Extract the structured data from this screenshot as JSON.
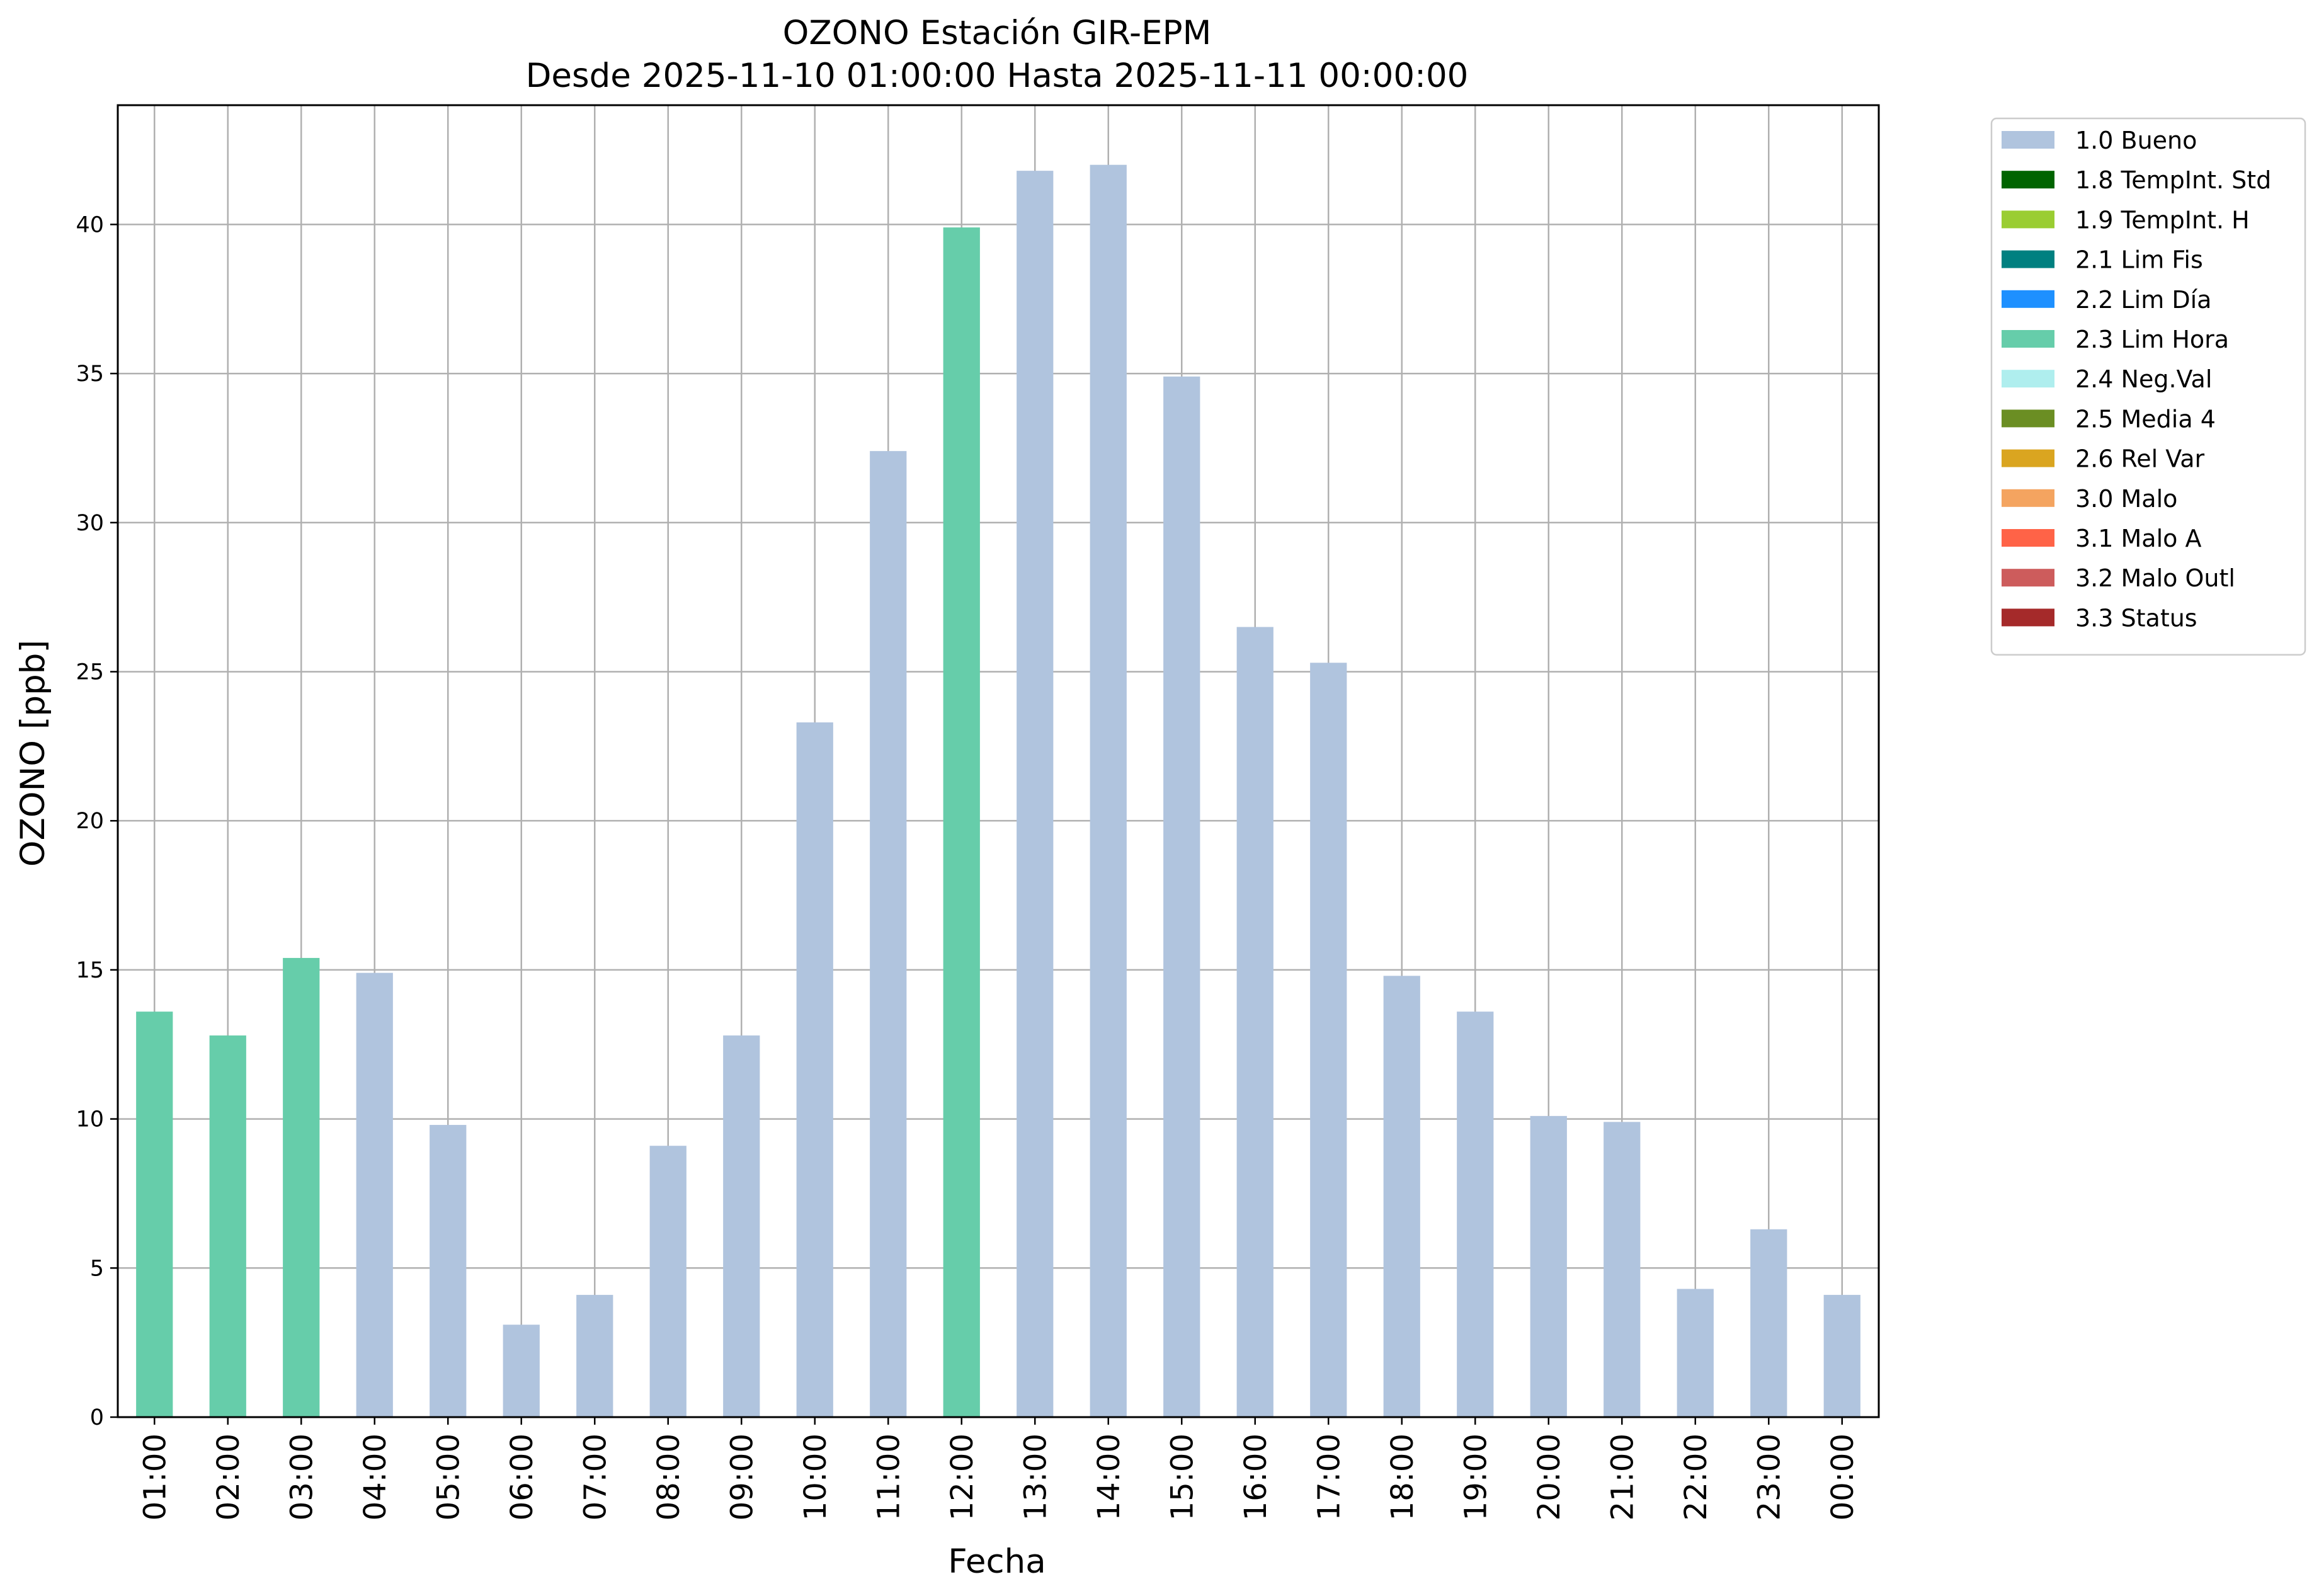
{
  "chart_data": {
    "type": "bar",
    "title": "OZONO Estación GIR-EPM",
    "subtitle": "Desde 2025-11-10 01:00:00 Hasta 2025-11-11 00:00:00",
    "xlabel": "Fecha",
    "ylabel": "OZONO [ppb]",
    "ylim": [
      0,
      44
    ],
    "yticks": [
      0,
      5,
      10,
      15,
      20,
      25,
      30,
      35,
      40
    ],
    "grid": true,
    "legend_position": "outside-top-right",
    "categories": [
      "01:00",
      "02:00",
      "03:00",
      "04:00",
      "05:00",
      "06:00",
      "07:00",
      "08:00",
      "09:00",
      "10:00",
      "11:00",
      "12:00",
      "13:00",
      "14:00",
      "15:00",
      "16:00",
      "17:00",
      "18:00",
      "19:00",
      "20:00",
      "21:00",
      "22:00",
      "23:00",
      "00:00"
    ],
    "values": [
      13.6,
      12.8,
      15.4,
      14.9,
      9.8,
      3.1,
      4.1,
      9.1,
      12.8,
      23.3,
      32.4,
      39.9,
      41.8,
      42.0,
      34.9,
      26.5,
      25.3,
      14.8,
      13.6,
      10.1,
      9.9,
      4.3,
      6.3,
      4.1
    ],
    "flags": [
      "2.3 Lim Hora",
      "2.3 Lim Hora",
      "2.3 Lim Hora",
      "1.0 Bueno",
      "1.0 Bueno",
      "1.0 Bueno",
      "1.0 Bueno",
      "1.0 Bueno",
      "1.0 Bueno",
      "1.0 Bueno",
      "1.0 Bueno",
      "2.3 Lim Hora",
      "1.0 Bueno",
      "1.0 Bueno",
      "1.0 Bueno",
      "1.0 Bueno",
      "1.0 Bueno",
      "1.0 Bueno",
      "1.0 Bueno",
      "1.0 Bueno",
      "1.0 Bueno",
      "1.0 Bueno",
      "1.0 Bueno",
      "1.0 Bueno"
    ],
    "legend": [
      {
        "label": "1.0 Bueno",
        "color": "#b0c4de"
      },
      {
        "label": "1.8 TempInt. Std",
        "color": "#006400"
      },
      {
        "label": "1.9 TempInt. H",
        "color": "#9acd32"
      },
      {
        "label": "2.1 Lim Fis",
        "color": "#008080"
      },
      {
        "label": "2.2 Lim Día",
        "color": "#1e90ff"
      },
      {
        "label": "2.3 Lim Hora",
        "color": "#66cdaa"
      },
      {
        "label": "2.4 Neg.Val",
        "color": "#afeeee"
      },
      {
        "label": "2.5 Media 4",
        "color": "#6b8e23"
      },
      {
        "label": "2.6 Rel Var",
        "color": "#daa520"
      },
      {
        "label": "3.0 Malo",
        "color": "#f4a460"
      },
      {
        "label": "3.1 Malo A",
        "color": "#ff6347"
      },
      {
        "label": "3.2 Malo Outl",
        "color": "#cd5c5c"
      },
      {
        "label": "3.3 Status",
        "color": "#a52a2a"
      }
    ]
  }
}
